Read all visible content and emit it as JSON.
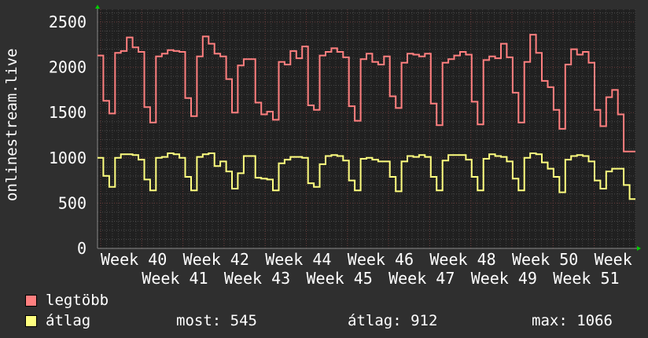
{
  "chart_data": {
    "type": "line",
    "ylabel": "onlinestream.live",
    "ylim": [
      0,
      2500
    ],
    "yticks": [
      "0",
      "500",
      "1000",
      "1500",
      "2000",
      "2500"
    ],
    "xticks": [
      "Week 40",
      "Week 41",
      "Week 42",
      "Week 43",
      "Week 44",
      "Week 45",
      "Week 46",
      "Week 47",
      "Week 48",
      "Week 49",
      "Week 50",
      "Week 51",
      "Week"
    ],
    "grid": true,
    "legend_placement": "bottom-left",
    "background": "#202020",
    "series": [
      {
        "name": "legtöbb",
        "color": "#ff7f7f",
        "values": [
          2130,
          1630,
          1490,
          2160,
          2180,
          2330,
          2220,
          2170,
          1560,
          1390,
          2120,
          2150,
          2190,
          2180,
          2170,
          1660,
          1460,
          2120,
          2340,
          2260,
          2150,
          2120,
          1870,
          1500,
          2020,
          2090,
          2090,
          1610,
          1480,
          1510,
          1420,
          2060,
          2030,
          2180,
          2100,
          2230,
          1580,
          1530,
          2130,
          2170,
          2210,
          2170,
          2110,
          1570,
          1410,
          2090,
          2150,
          2060,
          2030,
          2120,
          1680,
          1550,
          2050,
          2150,
          2140,
          2120,
          2150,
          1600,
          1360,
          2050,
          2090,
          2130,
          2170,
          2140,
          1620,
          1370,
          2080,
          2120,
          2100,
          2260,
          2110,
          1720,
          1390,
          2060,
          2360,
          2160,
          1850,
          1780,
          1530,
          1320,
          2030,
          2200,
          2140,
          2170,
          2050,
          1530,
          1350,
          1670,
          1750,
          1480,
          1070,
          1070
        ]
      },
      {
        "name": "átlag",
        "color": "#ffff7f",
        "values": [
          1000,
          800,
          680,
          1000,
          1040,
          1040,
          1030,
          980,
          760,
          640,
          1000,
          1010,
          1050,
          1040,
          1000,
          790,
          640,
          1010,
          1040,
          1050,
          910,
          960,
          850,
          660,
          830,
          1020,
          1020,
          780,
          770,
          760,
          640,
          940,
          980,
          1010,
          1010,
          1000,
          720,
          680,
          930,
          1020,
          1030,
          1020,
          970,
          750,
          640,
          990,
          1000,
          980,
          960,
          960,
          790,
          630,
          960,
          1020,
          1010,
          1030,
          1010,
          790,
          640,
          970,
          1030,
          1030,
          1030,
          980,
          790,
          640,
          990,
          1040,
          1020,
          1010,
          960,
          770,
          640,
          1000,
          1050,
          1040,
          950,
          880,
          790,
          620,
          980,
          1020,
          1030,
          1020,
          960,
          750,
          660,
          850,
          880,
          880,
          700,
          545
        ]
      }
    ]
  },
  "legend": {
    "max_label": "legtöbb",
    "avg_label": "átlag",
    "now": "most: 545",
    "avg": "átlag: 912",
    "max": "max: 1066"
  }
}
